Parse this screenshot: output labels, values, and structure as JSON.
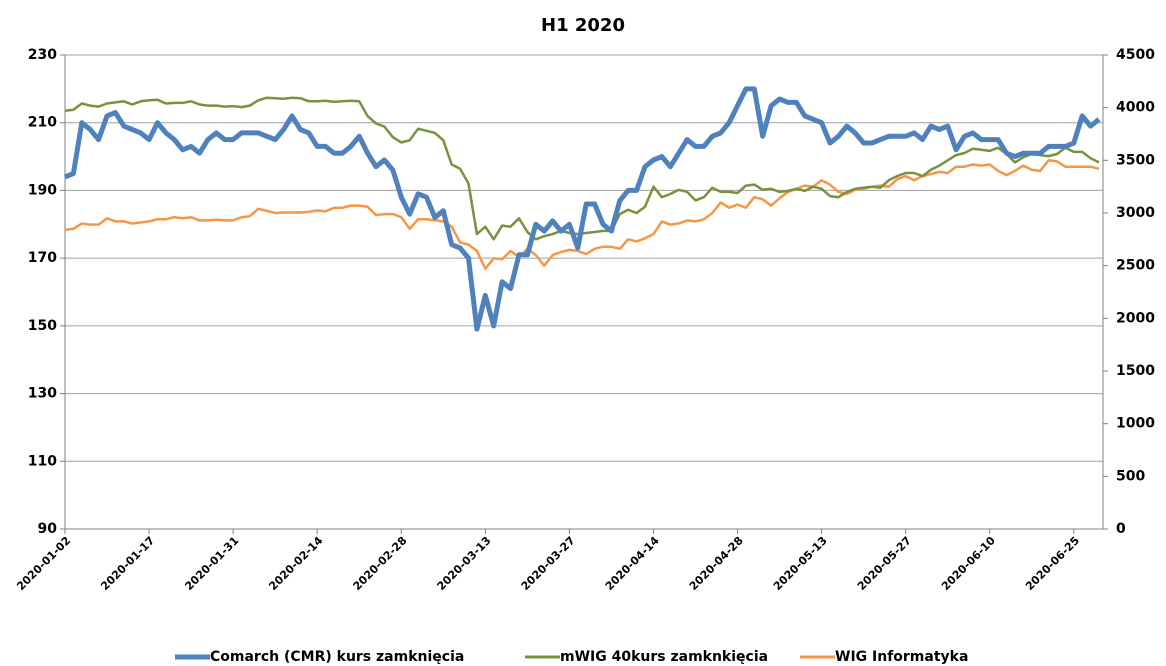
{
  "chart_data": {
    "type": "line",
    "title": "H1 2020",
    "categories": [
      "2020-01-02",
      null,
      null,
      null,
      null,
      null,
      null,
      null,
      null,
      null,
      "2020-01-17",
      null,
      null,
      null,
      null,
      null,
      null,
      null,
      null,
      null,
      "2020-01-31",
      null,
      null,
      null,
      null,
      null,
      null,
      null,
      null,
      null,
      "2020-02-14",
      null,
      null,
      null,
      null,
      null,
      null,
      null,
      null,
      null,
      "2020-02-28",
      null,
      null,
      null,
      null,
      null,
      null,
      null,
      null,
      null,
      "2020-03-13",
      null,
      null,
      null,
      null,
      null,
      null,
      null,
      null,
      null,
      "2020-03-27",
      null,
      null,
      null,
      null,
      null,
      null,
      null,
      null,
      null,
      "2020-04-14",
      null,
      null,
      null,
      null,
      null,
      null,
      null,
      null,
      null,
      "2020-04-28",
      null,
      null,
      null,
      null,
      null,
      null,
      null,
      null,
      null,
      "2020-05-13",
      null,
      null,
      null,
      null,
      null,
      null,
      null,
      null,
      null,
      "2020-05-27",
      null,
      null,
      null,
      null,
      null,
      null,
      null,
      null,
      null,
      "2020-06-10",
      null,
      null,
      null,
      null,
      null,
      null,
      null,
      null,
      null,
      "2020-06-25",
      null,
      null,
      null
    ],
    "series": [
      {
        "name": "Comarch (CMR) kurs zamknięcia",
        "color": "#4f81bd",
        "axis": "y",
        "values": [
          194,
          195,
          210,
          208,
          205,
          212,
          213,
          209,
          208,
          207,
          205,
          210,
          207,
          205,
          202,
          203,
          201,
          205,
          207,
          205,
          205,
          207,
          207,
          207,
          206,
          205,
          208,
          212,
          208,
          207,
          203,
          203,
          201,
          201,
          203,
          206,
          201,
          197,
          199,
          196,
          188,
          183,
          189,
          188,
          182,
          184,
          174,
          173,
          170,
          149,
          159,
          150,
          163,
          161,
          171,
          171,
          180,
          178,
          181,
          178,
          180,
          173,
          186,
          186,
          180,
          178,
          187,
          190,
          190,
          197,
          199,
          200,
          197,
          201,
          205,
          203,
          203,
          206,
          207,
          210,
          215,
          220,
          220,
          206,
          215,
          217,
          216,
          216,
          212,
          211,
          210,
          204,
          206,
          209,
          207,
          204,
          204,
          205,
          206,
          206,
          206,
          207,
          205,
          209,
          208,
          209,
          202,
          206,
          207,
          205,
          205,
          205,
          201,
          200,
          201,
          201,
          201,
          203,
          203,
          203,
          204,
          212,
          209,
          211
        ]
      },
      {
        "name": "mWIG 40kurs zamknkięcia",
        "color": "#77933c",
        "axis": "y2",
        "values": [
          3970,
          3980,
          4040,
          4020,
          4010,
          4040,
          4050,
          4060,
          4030,
          4060,
          4070,
          4075,
          4040,
          4045,
          4045,
          4060,
          4030,
          4020,
          4020,
          4010,
          4015,
          4005,
          4020,
          4070,
          4095,
          4090,
          4085,
          4095,
          4090,
          4060,
          4060,
          4065,
          4055,
          4060,
          4065,
          4060,
          3920,
          3850,
          3820,
          3720,
          3670,
          3690,
          3800,
          3780,
          3760,
          3690,
          3460,
          3420,
          3280,
          2800,
          2870,
          2750,
          2880,
          2870,
          2950,
          2820,
          2750,
          2780,
          2800,
          2830,
          2810,
          2800,
          2810,
          2820,
          2830,
          2830,
          2990,
          3030,
          3000,
          3060,
          3250,
          3150,
          3180,
          3220,
          3200,
          3120,
          3150,
          3240,
          3200,
          3200,
          3190,
          3260,
          3270,
          3220,
          3230,
          3200,
          3210,
          3230,
          3210,
          3250,
          3230,
          3160,
          3150,
          3200,
          3230,
          3240,
          3250,
          3240,
          3310,
          3350,
          3380,
          3380,
          3350,
          3410,
          3450,
          3500,
          3550,
          3570,
          3610,
          3600,
          3590,
          3620,
          3560,
          3480,
          3530,
          3560,
          3550,
          3540,
          3560,
          3620,
          3580,
          3580,
          3520,
          3480
        ]
      },
      {
        "name": "WIG Informatyka",
        "color": "#f79646",
        "axis": "y2",
        "values": [
          2840,
          2850,
          2900,
          2890,
          2890,
          2950,
          2920,
          2920,
          2900,
          2910,
          2920,
          2940,
          2940,
          2960,
          2950,
          2960,
          2930,
          2930,
          2935,
          2930,
          2930,
          2960,
          2970,
          3040,
          3020,
          3000,
          3005,
          3005,
          3005,
          3010,
          3025,
          3015,
          3050,
          3050,
          3070,
          3070,
          3060,
          2980,
          2990,
          2990,
          2960,
          2850,
          2940,
          2940,
          2930,
          2920,
          2870,
          2720,
          2700,
          2640,
          2470,
          2570,
          2560,
          2640,
          2580,
          2660,
          2600,
          2500,
          2600,
          2630,
          2650,
          2640,
          2610,
          2660,
          2680,
          2680,
          2660,
          2750,
          2730,
          2760,
          2800,
          2920,
          2890,
          2900,
          2930,
          2920,
          2940,
          3000,
          3100,
          3050,
          3080,
          3050,
          3150,
          3130,
          3070,
          3140,
          3200,
          3230,
          3260,
          3250,
          3310,
          3270,
          3200,
          3180,
          3220,
          3230,
          3250,
          3260,
          3250,
          3320,
          3350,
          3310,
          3350,
          3370,
          3390,
          3380,
          3440,
          3440,
          3460,
          3450,
          3460,
          3400,
          3360,
          3400,
          3450,
          3410,
          3400,
          3500,
          3490,
          3440,
          3440,
          3440,
          3440,
          3420
        ]
      }
    ],
    "ylim": [
      90,
      230
    ],
    "yticks": [
      90,
      110,
      130,
      150,
      170,
      190,
      210,
      230
    ],
    "y2lim": [
      0,
      4500
    ],
    "y2ticks": [
      0,
      500,
      1000,
      1500,
      2000,
      2500,
      3000,
      3500,
      4000,
      4500
    ],
    "grid": true,
    "legend": "bottom"
  }
}
